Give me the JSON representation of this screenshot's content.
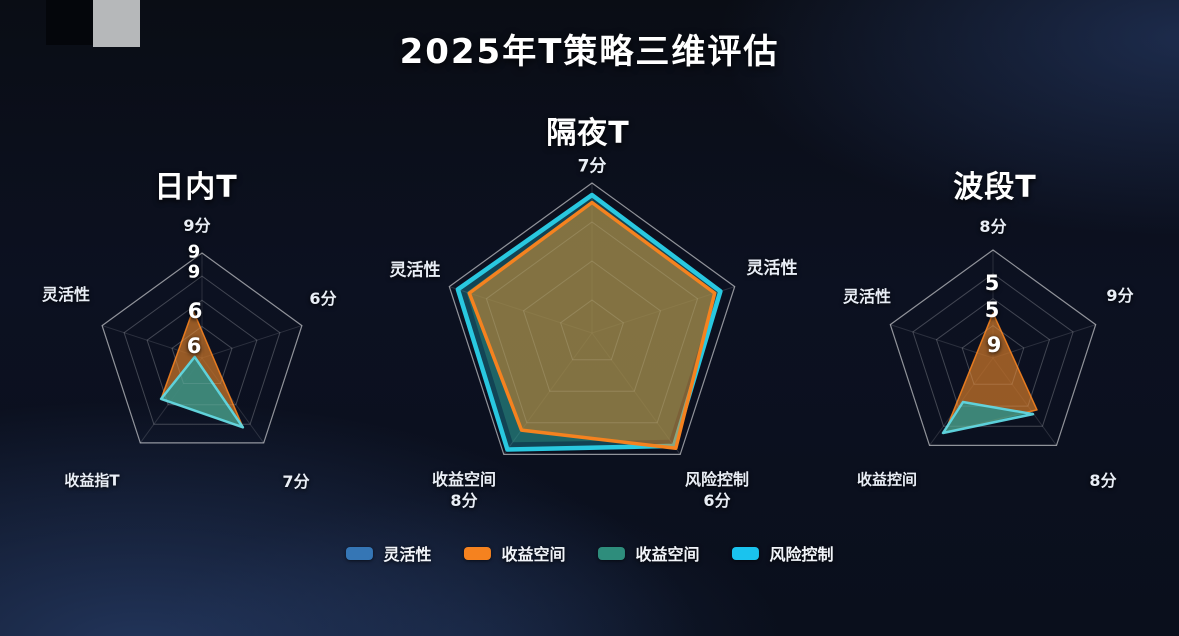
{
  "title": "2025年T策略三维评估",
  "colors": {
    "background_top": "#0a0d15",
    "background_bottom": "#1d2c4d",
    "grid_line": "rgba(255,255,255,0.15)",
    "grid_outer": "rgba(255,255,255,0.55)",
    "flexibility_blue": "#3576b5",
    "profit_orange": "#f5821f",
    "profit_teal": "#2e8d7c",
    "risk_cyan": "#1ac3ee",
    "label_text": "#e9eef6",
    "artifact_grey": "#b6b8ba"
  },
  "legend": [
    {
      "label": "灵活性",
      "color": "#3576b5"
    },
    {
      "label": "收益空间",
      "color": "#f5821f"
    },
    {
      "label": "收益空间",
      "color": "#2e8d7c"
    },
    {
      "label": "风险控制",
      "color": "#1ac3ee"
    }
  ],
  "chart_data": [
    {
      "type": "radar",
      "title": "日内T",
      "n_axes": 5,
      "grid_levels": [
        0.3,
        0.55,
        0.78,
        1
      ],
      "axis_labels": {
        "top": "9分",
        "right": "6分",
        "bottom_right": "7分",
        "bottom_left": "收益指T",
        "left": "灵活性"
      },
      "value_labels": [
        "9",
        "9",
        "6",
        "6"
      ],
      "series": [
        {
          "name": "收益空间",
          "stroke": "rgba(245,130,31,0.9)",
          "stroke_width": 1.5,
          "fill": "rgba(198,115,40,0.75)",
          "points": [
            [
              -0.086,
              -0.457
            ],
            [
              -0.39,
              0.39
            ],
            [
              0.39,
              0.66
            ]
          ]
        },
        {
          "name": "收益空间",
          "stroke": "rgba(95,215,225,0.95)",
          "stroke_width": 2.5,
          "fill": "rgba(42,143,138,0.82)",
          "points": [
            [
              -0.07,
              -0.01
            ],
            [
              -0.39,
              0.39
            ],
            [
              0.39,
              0.66
            ]
          ]
        }
      ]
    },
    {
      "type": "radar",
      "title": "隔夜T",
      "n_axes": 5,
      "grid_levels": [
        0.22,
        0.48,
        0.74,
        1
      ],
      "axis_labels": {
        "top": "7分",
        "right": "灵活性",
        "bottom_right": [
          "风险控制",
          "6分"
        ],
        "bottom_left": [
          "收益空间",
          "8分"
        ],
        "left": "灵活性"
      },
      "value_labels": [],
      "series": [
        {
          "name": "风险控制",
          "stroke": "#29c8e0",
          "stroke_width": 4.5,
          "fill": "rgba(41,200,224,0.28)",
          "values": [
            0.92,
            0.9,
            0.93,
            0.96,
            0.94
          ]
        },
        {
          "name": "收益空间",
          "stroke": "none",
          "stroke_width": 0,
          "fill": "rgba(46,141,124,0.45)",
          "values": [
            0.88,
            0.87,
            0.88,
            0.9,
            0.88
          ]
        },
        {
          "name": "收益空间",
          "stroke": "#f5821f",
          "stroke_width": 3.5,
          "fill": "rgba(240,130,28,0.48)",
          "values": [
            0.87,
            0.86,
            0.95,
            0.8,
            0.86
          ]
        }
      ]
    },
    {
      "type": "radar",
      "title": "波段T",
      "n_axes": 5,
      "grid_levels": [
        0.3,
        0.55,
        0.78,
        1
      ],
      "axis_labels": {
        "top": "8分",
        "right": "9分",
        "bottom_right": "8分",
        "bottom_left": "收益控间",
        "left": "灵活性"
      },
      "value_labels": [
        "5",
        "5",
        "9"
      ],
      "series": [
        {
          "name": "收益空间",
          "stroke": "rgba(245,130,31,0.9)",
          "stroke_width": 1.5,
          "fill": "rgba(198,115,40,0.75)",
          "points": [
            [
              0,
              -0.417
            ],
            [
              -0.444,
              0.685
            ],
            [
              0.407,
              0.481
            ]
          ]
        },
        {
          "name": "收益空间",
          "stroke": "rgba(95,215,225,0.95)",
          "stroke_width": 2.5,
          "fill": "rgba(42,143,138,0.82)",
          "points": [
            [
              -0.278,
              0.407
            ],
            [
              -0.463,
              0.694
            ],
            [
              0.37,
              0.519
            ]
          ]
        }
      ]
    }
  ]
}
